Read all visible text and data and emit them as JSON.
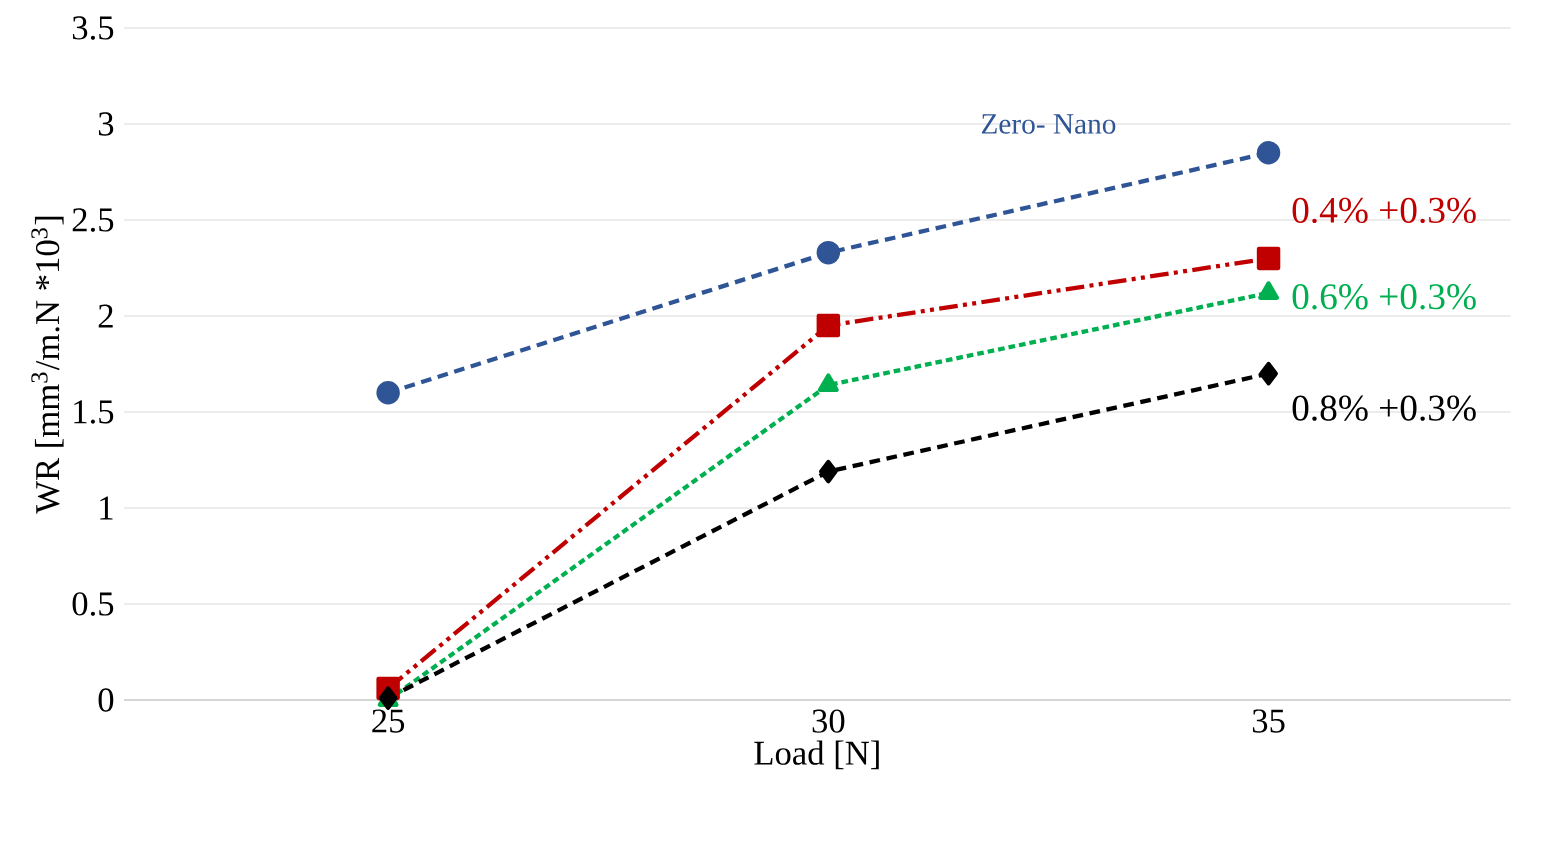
{
  "chart_data": {
    "type": "line",
    "xlabel": "Load [N]",
    "ylabel": "WR [mm$^{3}$/m.N *10$^{3}$]",
    "categories": [
      "25",
      "30",
      "35"
    ],
    "ylim": [
      0,
      3.5
    ],
    "yticks": [
      0,
      0.5,
      1,
      1.5,
      2,
      2.5,
      3,
      3.5
    ],
    "grid": "y",
    "series": [
      {
        "name": "Zero- Nano",
        "color": "#2f5597",
        "values": [
          1.6,
          2.33,
          2.85
        ],
        "marker": "circle",
        "line_style": "dashed"
      },
      {
        "name": "0.4% +0.3%",
        "color": "#c00000",
        "values": [
          0.06,
          1.95,
          2.3
        ],
        "marker": "square",
        "line_style": "dashdotdotted"
      },
      {
        "name": "0.6% +0.3%",
        "color": "#00b050",
        "values": [
          0,
          1.64,
          2.12
        ],
        "marker": "triangle",
        "line_style": "dotted"
      },
      {
        "name": "0.8% +0.3%",
        "color": "#000000",
        "values": [
          0.01,
          1.19,
          1.7
        ],
        "marker": "diamond",
        "line_style": "dashed"
      }
    ]
  }
}
